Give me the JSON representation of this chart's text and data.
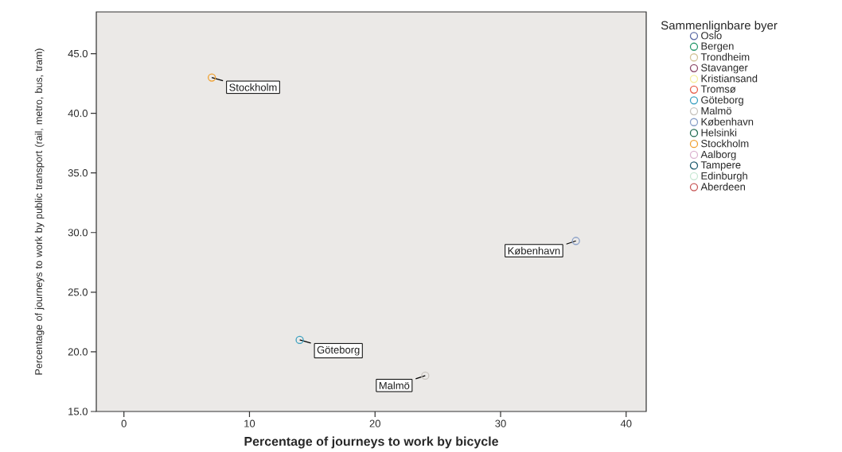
{
  "chart_data": {
    "type": "scatter",
    "xlabel": "Percentage of journeys to work by bicycle",
    "ylabel": "Percentage of journeys to work by public transport (rail, metro, bus, tram)",
    "legend_title": "Sammenlignbare byer",
    "legend": "right",
    "marker": "circle",
    "xlim": [
      -2.2,
      41.6
    ],
    "ylim": [
      15,
      48.5
    ],
    "xticks": [
      0,
      10,
      20,
      30,
      40
    ],
    "yticks": [
      {
        "value": 15,
        "label": "15.0"
      },
      {
        "value": 20,
        "label": "20.0"
      },
      {
        "value": 25,
        "label": "25.0"
      },
      {
        "value": 30,
        "label": "30.0"
      },
      {
        "value": 35,
        "label": "35.0"
      },
      {
        "value": 40,
        "label": "40.0"
      },
      {
        "value": 45,
        "label": "45.0"
      }
    ],
    "series": [
      {
        "name": "Oslo",
        "color": "#5c6ba6"
      },
      {
        "name": "Bergen",
        "color": "#2a9a6e"
      },
      {
        "name": "Trondheim",
        "color": "#d4c49a"
      },
      {
        "name": "Stavanger",
        "color": "#8c4a6a"
      },
      {
        "name": "Kristiansand",
        "color": "#f6ee9a"
      },
      {
        "name": "Tromsø",
        "color": "#e8604c"
      },
      {
        "name": "Göteborg",
        "color": "#3aa0c0",
        "x": [
          14
        ],
        "values": [
          21
        ]
      },
      {
        "name": "Malmö",
        "color": "#c8c4be",
        "x": [
          24
        ],
        "values": [
          18
        ]
      },
      {
        "name": "København",
        "color": "#8aa0c8",
        "x": [
          36
        ],
        "values": [
          29.3
        ]
      },
      {
        "name": "Helsinki",
        "color": "#1e6a50"
      },
      {
        "name": "Stockholm",
        "color": "#f0a030",
        "x": [
          7
        ],
        "values": [
          43
        ]
      },
      {
        "name": "Aalborg",
        "color": "#dcb4d0"
      },
      {
        "name": "Tampere",
        "color": "#1e5a6e"
      },
      {
        "name": "Edinburgh",
        "color": "#c8e8d4"
      },
      {
        "name": "Aberdeen",
        "color": "#c85a5a"
      }
    ],
    "annotations": [
      {
        "text": "Stockholm",
        "x": 7,
        "y": 43
      },
      {
        "text": "Göteborg",
        "x": 14,
        "y": 21
      },
      {
        "text": "Malmö",
        "x": 24,
        "y": 18
      },
      {
        "text": "København",
        "x": 36,
        "y": 29.3
      }
    ]
  }
}
